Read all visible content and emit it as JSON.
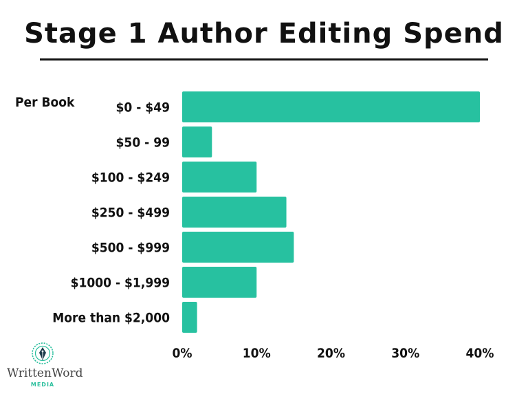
{
  "chart_data": {
    "type": "bar",
    "orientation": "horizontal",
    "title": "Stage 1 Author Editing Spend",
    "side_label": "Per Book",
    "categories": [
      "$0 - $49",
      "$50 - 99",
      "$100 - $249",
      "$250 - $499",
      "$500 - $999",
      "$1000 - $1,999",
      "More than $2,000"
    ],
    "values": [
      40,
      4,
      10,
      14,
      15,
      10,
      2
    ],
    "xlim": [
      0,
      40
    ],
    "x_ticks": [
      0,
      10,
      20,
      30,
      40
    ],
    "x_tick_labels": [
      "0%",
      "10%",
      "20%",
      "30%",
      "40%"
    ],
    "grid": false,
    "legend": "none",
    "bar_color": "#27c1a0"
  },
  "logo": {
    "brand": "WrittenWord",
    "sub": "MEDIA",
    "icon": "fountain-pen-nib-icon"
  }
}
